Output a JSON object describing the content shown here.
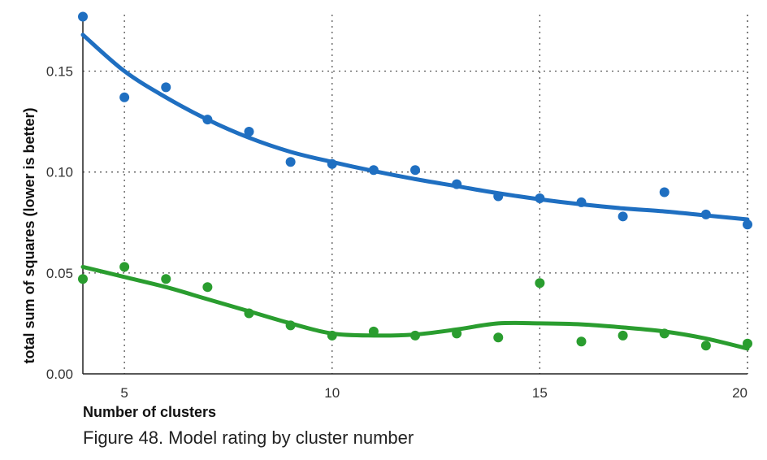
{
  "chart_data": {
    "type": "scatter",
    "caption": "Figure 48. Model rating by cluster number",
    "xlabel": "Number of clusters",
    "ylabel": "total sum of squares (lower is better)",
    "xlim": [
      4,
      20
    ],
    "ylim": [
      0,
      0.178
    ],
    "x_ticks": [
      5,
      10,
      15,
      20
    ],
    "y_ticks": [
      0.0,
      0.05,
      0.1,
      0.15
    ],
    "y_tick_labels": [
      "0.00",
      "0.05",
      "0.10",
      "0.15"
    ],
    "grid": true,
    "grid_style": "dotted",
    "legend": "none",
    "series": [
      {
        "color": "#1f6fc1",
        "points": {
          "x": [
            4,
            5,
            6,
            7,
            8,
            9,
            10,
            11,
            12,
            13,
            14,
            15,
            16,
            17,
            18,
            19,
            20
          ],
          "y": [
            0.177,
            0.137,
            0.142,
            0.126,
            0.12,
            0.105,
            0.104,
            0.101,
            0.101,
            0.094,
            0.088,
            0.087,
            0.085,
            0.078,
            0.09,
            0.079,
            0.074
          ]
        },
        "trend": {
          "x": [
            4,
            5,
            6,
            7,
            8,
            9,
            10,
            11,
            12,
            13,
            14,
            15,
            16,
            17,
            18,
            19,
            20
          ],
          "y": [
            0.168,
            0.15,
            0.137,
            0.126,
            0.117,
            0.11,
            0.105,
            0.1005,
            0.0965,
            0.093,
            0.0895,
            0.0865,
            0.084,
            0.082,
            0.0805,
            0.0785,
            0.0765
          ]
        }
      },
      {
        "color": "#2a9d2f",
        "points": {
          "x": [
            4,
            5,
            6,
            7,
            8,
            9,
            10,
            11,
            12,
            13,
            14,
            15,
            16,
            17,
            18,
            19,
            20
          ],
          "y": [
            0.047,
            0.053,
            0.047,
            0.043,
            0.03,
            0.024,
            0.019,
            0.021,
            0.019,
            0.02,
            0.018,
            0.045,
            0.016,
            0.019,
            0.02,
            0.014,
            0.015
          ]
        },
        "trend": {
          "x": [
            4,
            5,
            6,
            7,
            8,
            9,
            10,
            11,
            12,
            13,
            14,
            15,
            16,
            17,
            18,
            19,
            20
          ],
          "y": [
            0.053,
            0.048,
            0.043,
            0.037,
            0.031,
            0.025,
            0.02,
            0.019,
            0.0195,
            0.022,
            0.025,
            0.025,
            0.0245,
            0.023,
            0.021,
            0.0175,
            0.0125
          ]
        }
      }
    ]
  }
}
